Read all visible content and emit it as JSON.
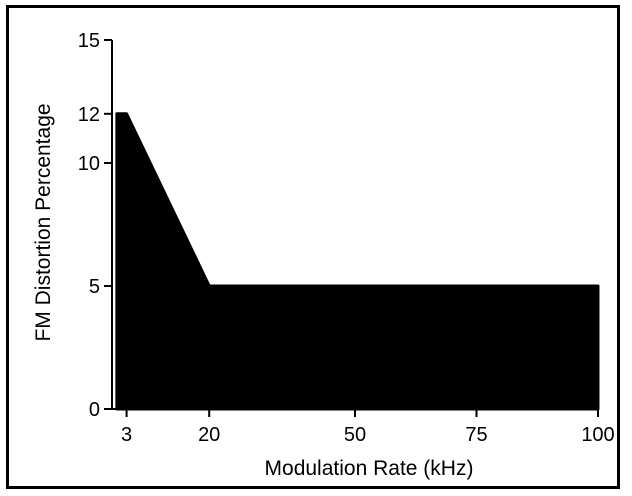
{
  "chart_data": {
    "type": "area",
    "xlabel": "Modulation Rate (kHz)",
    "ylabel": "FM Distortion Percentage",
    "x": [
      1,
      3,
      20,
      100
    ],
    "y": [
      12,
      12,
      5,
      5
    ],
    "xlim": [
      0,
      100
    ],
    "ylim": [
      0,
      15
    ],
    "x_ticks": [
      3,
      20,
      50,
      75,
      100
    ],
    "y_ticks": [
      0,
      5,
      10,
      12,
      15
    ],
    "grid": false,
    "fill_color": "#000000"
  }
}
